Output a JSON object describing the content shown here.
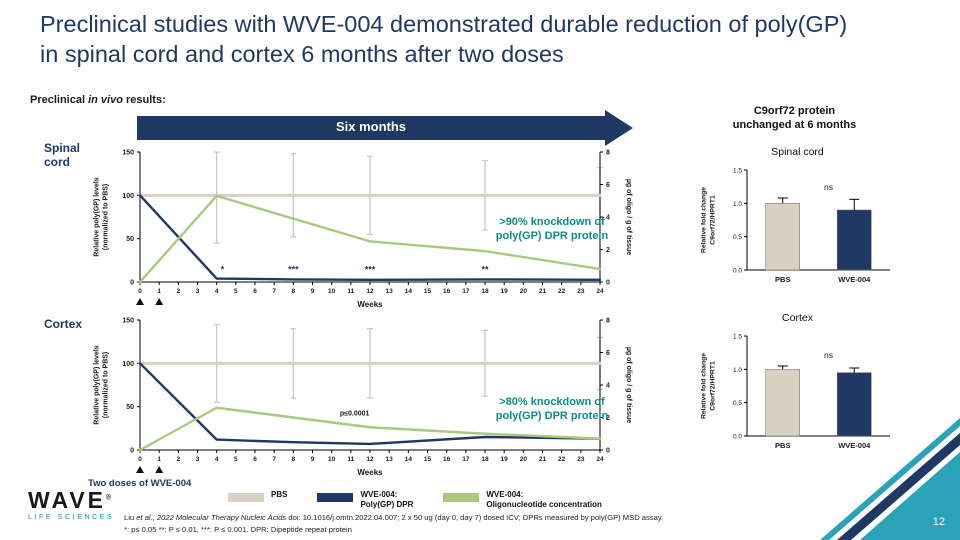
{
  "slide": {
    "title": "Preclinical studies with WVE-004 demonstrated durable reduction of poly(GP) in spinal cord and cortex 6 months after two doses",
    "page_number": "12"
  },
  "header": {
    "results_label_prefix": "Preclinical ",
    "results_label_italic": "in vivo",
    "results_label_suffix": " results:",
    "arrow_label": "Six months"
  },
  "left_panel": {
    "spinal_row_label": "Spinal\ncord",
    "cortex_row_label": "Cortex",
    "spinal_knockdown_note": ">90% knockdown of\npoly(GP) DPR protein",
    "cortex_knockdown_note": ">80% knockdown of\npoly(GP) DPR protein",
    "two_doses_label": "Two doses of WVE-004"
  },
  "right_panel": {
    "heading": "C9orf72 protein\nunchanged at 6 months"
  },
  "legend": {
    "items": [
      {
        "label": "PBS",
        "color": "#D9D2C3"
      },
      {
        "label": "WVE-004:\nPoly(GP) DPR",
        "color": "#1F3864"
      },
      {
        "label": "WVE-004:\nOligonucleotide concentration",
        "color": "#A9C97E"
      }
    ]
  },
  "footer": {
    "citation_prefix": "Liu ",
    "citation_italic": "et al., 2022 Molecular Therapy Nucleic Acids",
    "citation_rest": " doi: 10.1016/j.omtn.2022.04.007;  2 x 50 ug (day 0, day 7) dosed ICV; DPRs measured by poly(GP) MSD assay.",
    "line2": "*: p≤ 0.05 **: P ≤ 0.01, ***: P ≤ 0.001. DPR: Dipeptide repeat protein"
  },
  "logo": {
    "brand": "WAVE",
    "registered": "®",
    "tagline": "LIFE SCIENCES"
  },
  "colors": {
    "navy": "#1F3864",
    "green": "#A9C97E",
    "tan": "#D9D2C3",
    "teal_accent": "#2AA2B8",
    "knockdown_teal": "#0F8B84"
  },
  "chart_data": [
    {
      "id": "spinal-line",
      "type": "line",
      "title": "Spinal cord poly(GP) over 24 weeks",
      "xlabel": "Weeks",
      "ylabel_left": "Relative poly(GP) levels\n(normalized to PBS)",
      "ylabel_right": "µg of oligo / g of tissue",
      "xlim": [
        0,
        24
      ],
      "xticks": [
        0,
        1,
        2,
        3,
        4,
        5,
        6,
        7,
        8,
        9,
        10,
        11,
        12,
        13,
        14,
        15,
        16,
        17,
        18,
        19,
        20,
        21,
        22,
        23,
        24
      ],
      "ylim_left": [
        0,
        150
      ],
      "yticks_left": [
        0,
        50,
        100,
        150
      ],
      "ylim_right": [
        0,
        8
      ],
      "yticks_right": [
        0,
        2,
        4,
        6,
        8
      ],
      "dose_marker_weeks": [
        0,
        1
      ],
      "series": [
        {
          "name": "PBS",
          "axis": "left",
          "color": "#D9D2C3",
          "width": 3,
          "x": [
            0,
            4,
            8,
            12,
            18,
            24
          ],
          "y": [
            100,
            100,
            100,
            100,
            100,
            100
          ],
          "err": [
            0,
            55,
            48,
            45,
            40,
            32
          ]
        },
        {
          "name": "WVE-004: Poly(GP) DPR",
          "axis": "left",
          "color": "#1F3864",
          "width": 2.4,
          "x": [
            0,
            4,
            8,
            12,
            18,
            24
          ],
          "y": [
            100,
            4,
            3,
            2.5,
            3,
            2.5
          ]
        },
        {
          "name": "WVE-004: Oligonucleotide concentration",
          "axis": "right",
          "color": "#A9C97E",
          "width": 2.4,
          "x": [
            0,
            4,
            12,
            18,
            24
          ],
          "y": [
            0,
            5.3,
            2.5,
            1.9,
            0.8
          ]
        }
      ],
      "annotations": [
        {
          "x": 4.3,
          "y": 11,
          "text": "*",
          "color": "#1F3864"
        },
        {
          "x": 8,
          "y": 11,
          "text": "***",
          "color": "#1F3864"
        },
        {
          "x": 12,
          "y": 11,
          "text": "***",
          "color": "#1F3864"
        },
        {
          "x": 18,
          "y": 11,
          "text": "**",
          "color": "#1F3864"
        }
      ]
    },
    {
      "id": "cortex-line",
      "type": "line",
      "title": "Cortex poly(GP) over 24 weeks",
      "xlabel": "Weeks",
      "ylabel_left": "Relative poly(GP) levels\n(normalized to PBS)",
      "ylabel_right": "µg of oligo / g of tissue",
      "xlim": [
        0,
        24
      ],
      "xticks": [
        0,
        1,
        2,
        3,
        4,
        5,
        6,
        7,
        8,
        9,
        10,
        11,
        12,
        13,
        14,
        15,
        16,
        17,
        18,
        19,
        20,
        21,
        22,
        23,
        24
      ],
      "ylim_left": [
        0,
        150
      ],
      "yticks_left": [
        0,
        50,
        100,
        150
      ],
      "ylim_right": [
        0,
        8
      ],
      "yticks_right": [
        0,
        2,
        4,
        6,
        8
      ],
      "dose_marker_weeks": [
        0,
        1
      ],
      "series": [
        {
          "name": "PBS",
          "axis": "left",
          "color": "#D9D2C3",
          "width": 3,
          "x": [
            0,
            4,
            8,
            12,
            18,
            24
          ],
          "y": [
            100,
            100,
            100,
            100,
            100,
            100
          ],
          "err": [
            0,
            45,
            40,
            40,
            38,
            30
          ]
        },
        {
          "name": "WVE-004: Poly(GP) DPR",
          "axis": "left",
          "color": "#1F3864",
          "width": 2.4,
          "x": [
            0,
            4,
            8,
            12,
            18,
            24
          ],
          "y": [
            100,
            12,
            9,
            7,
            15,
            13
          ]
        },
        {
          "name": "WVE-004: Oligonucleotide concentration",
          "axis": "right",
          "color": "#A9C97E",
          "width": 2.4,
          "x": [
            0,
            4,
            12,
            18,
            24
          ],
          "y": [
            0,
            2.6,
            1.4,
            1.0,
            0.7
          ]
        }
      ],
      "annotations": [
        {
          "x": 11.2,
          "y": 40,
          "text": "p≤0.0001",
          "size": 7,
          "color": "#1a1a1a"
        }
      ]
    },
    {
      "id": "spinal-bar",
      "type": "bar",
      "title": "Spinal cord",
      "ylabel": "Relative fold change\nC9orf72/HPRT1",
      "categories": [
        "PBS",
        "WVE-004"
      ],
      "values": [
        1.0,
        0.9
      ],
      "errors": [
        0.08,
        0.16
      ],
      "colors": [
        "#D9D2C3",
        "#1F3864"
      ],
      "ylim": [
        0,
        1.5
      ],
      "yticks": [
        0,
        0.5,
        1.0,
        1.5
      ],
      "annotation": "ns"
    },
    {
      "id": "cortex-bar",
      "type": "bar",
      "title": "Cortex",
      "ylabel": "Relative fold change\nC9orf72/HPRT1",
      "categories": [
        "PBS",
        "WVE-004"
      ],
      "values": [
        1.0,
        0.95
      ],
      "errors": [
        0.05,
        0.07
      ],
      "colors": [
        "#D9D2C3",
        "#1F3864"
      ],
      "ylim": [
        0,
        1.5
      ],
      "yticks": [
        0,
        0.5,
        1.0,
        1.5
      ],
      "annotation": "ns"
    }
  ]
}
